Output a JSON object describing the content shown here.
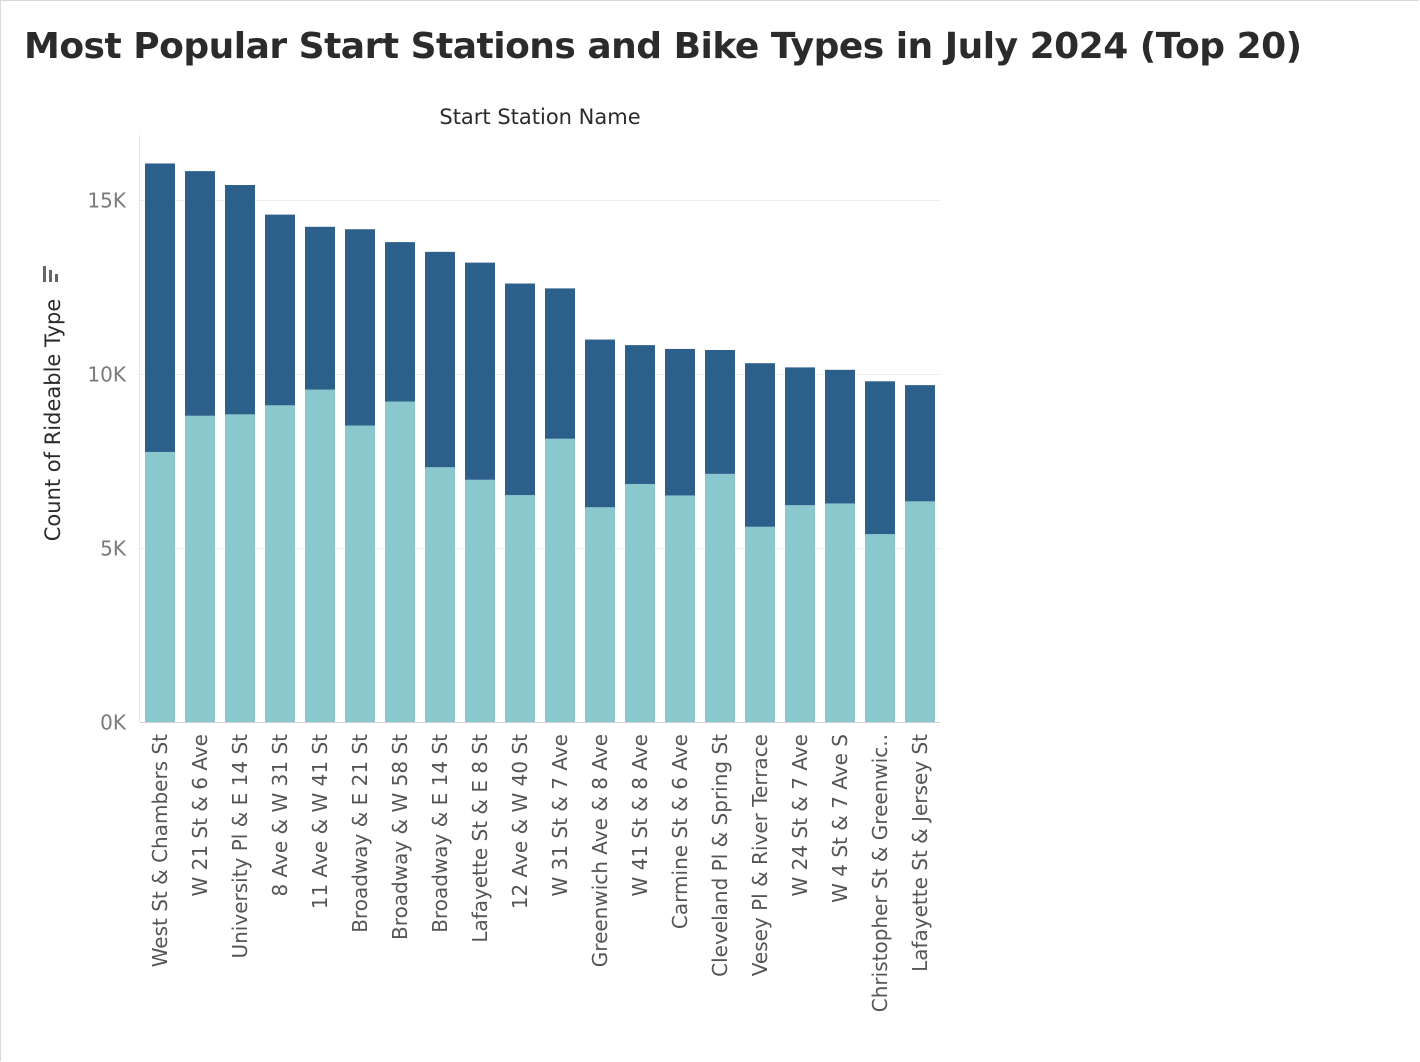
{
  "chart_data": {
    "type": "bar",
    "stacked": true,
    "title": "Most Popular Start Stations and Bike Types in July 2024 (Top 20)",
    "xlabel": "Start Station Name",
    "ylabel": "Count of Rideable Type",
    "ylim": [
      0,
      16500
    ],
    "yticks": [
      0,
      5000,
      10000,
      15000
    ],
    "ytick_labels": [
      "0K",
      "5K",
      "10K",
      "15K"
    ],
    "grid": true,
    "categories": [
      "West St & Chambers St",
      "W 21 St & 6 Ave",
      "University Pl & E 14 St",
      "8 Ave & W 31 St",
      "11 Ave & W 41 St",
      "Broadway & E 21 St",
      "Broadway & W 58 St",
      "Broadway & E 14 St",
      "Lafayette St & E 8 St",
      "12 Ave & W 40 St",
      "W 31 St & 7 Ave",
      "Greenwich Ave & 8 Ave",
      "W 41 St & 8 Ave",
      "Carmine St & 6 Ave",
      "Cleveland Pl & Spring St",
      "Vesey Pl & River Terrace",
      "W 24 St & 7 Ave",
      "W 4 St & 7 Ave S",
      "Christopher St & Greenwic..",
      "Lafayette St & Jersey St"
    ],
    "series": [
      {
        "color": "#8bc8ce",
        "values": [
          7760,
          8800,
          8840,
          9100,
          9550,
          8520,
          9210,
          7320,
          6960,
          6520,
          8140,
          6170,
          6840,
          6510,
          7130,
          5610,
          6230,
          6280,
          5400,
          6340
        ]
      },
      {
        "color": "#2d5f8b",
        "values": [
          8290,
          7030,
          6590,
          5480,
          4680,
          5640,
          4580,
          6190,
          6240,
          6080,
          4320,
          4820,
          3990,
          4210,
          3560,
          4700,
          3960,
          3840,
          4390,
          3340
        ]
      }
    ]
  }
}
